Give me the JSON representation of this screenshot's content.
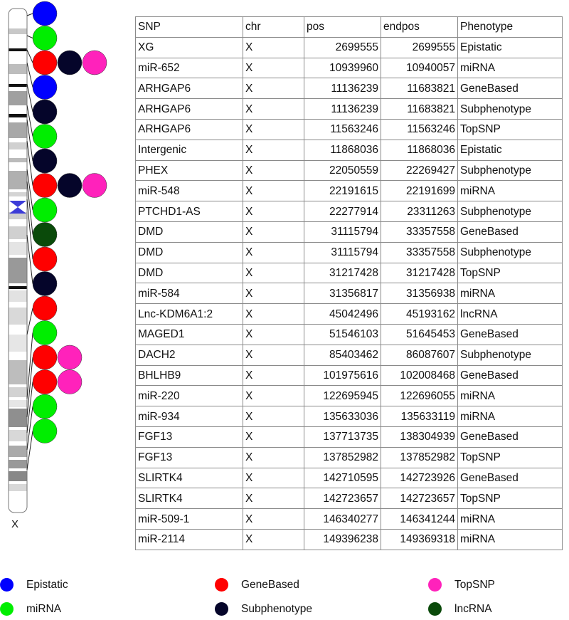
{
  "colors": {
    "Epistatic": "#0000ff",
    "miRNA": "#00ee00",
    "GeneBased": "#ff0000",
    "TopSNP": "#ff22bb",
    "Subphenotype": "#05052a",
    "lncRNA": "#0a4a0a"
  },
  "chromosome": {
    "label": "X"
  },
  "ideogram_markers": [
    {
      "row": 0,
      "types": [
        "Epistatic"
      ]
    },
    {
      "row": 1,
      "types": [
        "miRNA"
      ]
    },
    {
      "row": 2,
      "types": [
        "GeneBased",
        "Subphenotype",
        "TopSNP"
      ]
    },
    {
      "row": 3,
      "types": [
        "Epistatic"
      ]
    },
    {
      "row": 4,
      "types": [
        "Subphenotype"
      ]
    },
    {
      "row": 5,
      "types": [
        "miRNA"
      ]
    },
    {
      "row": 6,
      "types": [
        "Subphenotype"
      ]
    },
    {
      "row": 7,
      "types": [
        "GeneBased",
        "Subphenotype",
        "TopSNP"
      ]
    },
    {
      "row": 8,
      "types": [
        "miRNA"
      ]
    },
    {
      "row": 9,
      "types": [
        "lncRNA"
      ]
    },
    {
      "row": 10,
      "types": [
        "GeneBased"
      ]
    },
    {
      "row": 11,
      "types": [
        "Subphenotype"
      ]
    },
    {
      "row": 12,
      "types": [
        "GeneBased"
      ]
    },
    {
      "row": 13,
      "types": [
        "miRNA"
      ]
    },
    {
      "row": 14,
      "types": [
        "GeneBased",
        "TopSNP"
      ]
    },
    {
      "row": 15,
      "types": [
        "GeneBased",
        "TopSNP"
      ]
    },
    {
      "row": 16,
      "types": [
        "miRNA"
      ]
    },
    {
      "row": 17,
      "types": [
        "miRNA"
      ]
    }
  ],
  "table": {
    "headers": [
      "SNP",
      "chr",
      "pos",
      "endpos",
      "Phenotype"
    ],
    "rows": [
      [
        "XG",
        "X",
        "2699555",
        "2699555",
        "Epistatic"
      ],
      [
        "miR-652",
        "X",
        "10939960",
        "10940057",
        "miRNA"
      ],
      [
        "ARHGAP6",
        "X",
        "11136239",
        "11683821",
        "GeneBased"
      ],
      [
        "ARHGAP6",
        "X",
        "11136239",
        "11683821",
        "Subphenotype"
      ],
      [
        "ARHGAP6",
        "X",
        "11563246",
        "11563246",
        "TopSNP"
      ],
      [
        "Intergenic",
        "X",
        "11868036",
        "11868036",
        "Epistatic"
      ],
      [
        "PHEX",
        "X",
        "22050559",
        "22269427",
        "Subphenotype"
      ],
      [
        "miR-548",
        "X",
        "22191615",
        "22191699",
        "miRNA"
      ],
      [
        "PTCHD1-AS",
        "X",
        "22277914",
        "23311263",
        "Subphenotype"
      ],
      [
        "DMD",
        "X",
        "31115794",
        "33357558",
        "GeneBased"
      ],
      [
        "DMD",
        "X",
        "31115794",
        "33357558",
        "Subphenotype"
      ],
      [
        "DMD",
        "X",
        "31217428",
        "31217428",
        "TopSNP"
      ],
      [
        "miR-584",
        "X",
        "31356817",
        "31356938",
        "miRNA"
      ],
      [
        "Lnc-KDM6A1:2",
        "X",
        "45042496",
        "45193162",
        "lncRNA"
      ],
      [
        "MAGED1",
        "X",
        "51546103",
        "51645453",
        "GeneBased"
      ],
      [
        "DACH2",
        "X",
        "85403462",
        "86087607",
        "Subphenotype"
      ],
      [
        "BHLHB9",
        "X",
        "101975616",
        "102008468",
        "GeneBased"
      ],
      [
        "miR-220",
        "X",
        "122695945",
        "122696055",
        "miRNA"
      ],
      [
        "miR-934",
        "X",
        "135633036",
        "135633119",
        "miRNA"
      ],
      [
        "FGF13",
        "X",
        "137713735",
        "138304939",
        "GeneBased"
      ],
      [
        "FGF13",
        "X",
        "137852982",
        "137852982",
        "TopSNP"
      ],
      [
        "SLIRTK4",
        "X",
        "142710595",
        "142723926",
        "GeneBased"
      ],
      [
        "SLIRTK4",
        "X",
        "142723657",
        "142723657",
        "TopSNP"
      ],
      [
        "miR-509-1",
        "X",
        "146340277",
        "146341244",
        "miRNA"
      ],
      [
        "miR-2114",
        "X",
        "149396238",
        "149369318",
        "miRNA"
      ]
    ]
  },
  "legend": [
    {
      "label": "Epistatic",
      "key": "Epistatic"
    },
    {
      "label": "miRNA",
      "key": "miRNA"
    },
    {
      "label": "GeneBased",
      "key": "GeneBased"
    },
    {
      "label": "Subphenotype",
      "key": "Subphenotype"
    },
    {
      "label": "TopSNP",
      "key": "TopSNP"
    },
    {
      "label": "lncRNA",
      "key": "lncRNA"
    }
  ]
}
